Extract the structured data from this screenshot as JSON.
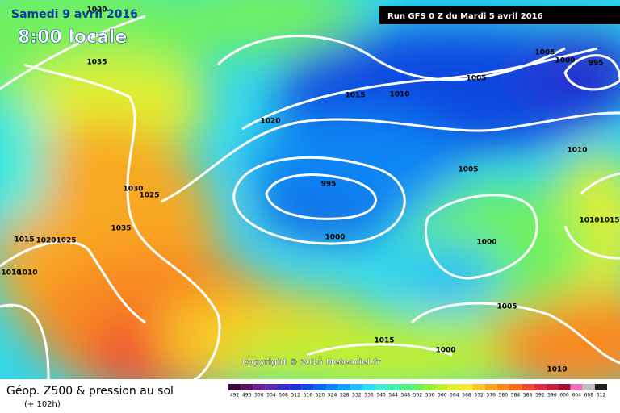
{
  "header": {
    "date": "Samedi 9 avril 2016",
    "time": "8:00 locale",
    "run": "Run GFS 0 Z du Mardi 5 avril 2016"
  },
  "footer": {
    "title": "Géop. Z500 & pression au sol",
    "lead": "(+ 102h)",
    "copyright": "Copyright © 2015 Meteociel.fr"
  },
  "isobar_labels": [
    1020,
    1035,
    1015,
    1010,
    1005,
    1005,
    1000,
    995,
    1020,
    1010,
    1005,
    995,
    1030,
    1025,
    1035,
    1015,
    1020,
    1025,
    1000,
    1000,
    1010,
    1015,
    1010,
    1010,
    1005,
    1015,
    1000,
    1010
  ],
  "legend": {
    "values": [
      492,
      496,
      500,
      504,
      508,
      512,
      516,
      520,
      524,
      528,
      532,
      536,
      540,
      544,
      548,
      552,
      556,
      560,
      564,
      568,
      572,
      576,
      580,
      584,
      588,
      592,
      596,
      600,
      604,
      608,
      612
    ],
    "colors": [
      "#3a0a3a",
      "#5a1060",
      "#6c1c8c",
      "#5a2aa8",
      "#3a2cc0",
      "#2030d0",
      "#1048e0",
      "#0a66ee",
      "#0a86f4",
      "#10a4f8",
      "#20c0f8",
      "#30dcf0",
      "#40ecd8",
      "#40f0b0",
      "#50f088",
      "#70f060",
      "#98f040",
      "#c0f030",
      "#e0f030",
      "#f8e830",
      "#f8c828",
      "#f8a820",
      "#f88820",
      "#f86a20",
      "#f04a30",
      "#e03040",
      "#c81c40",
      "#a01030",
      "#f070c0",
      "#c0c0c0",
      "#202020"
    ]
  }
}
